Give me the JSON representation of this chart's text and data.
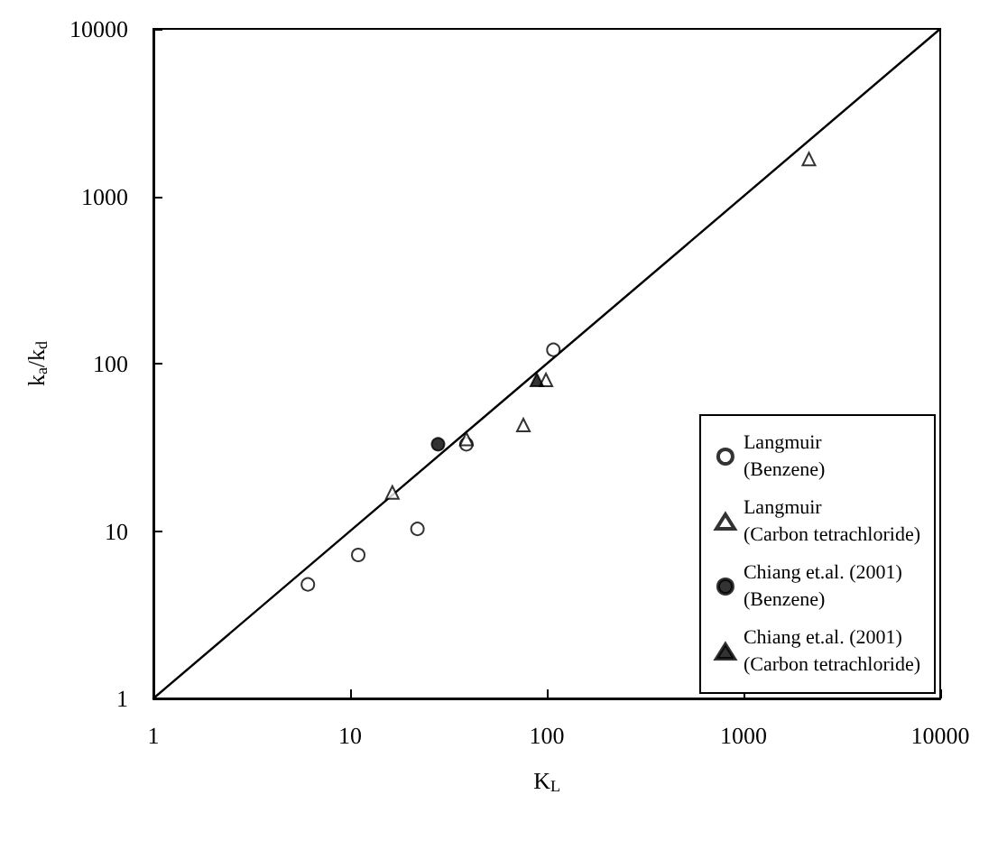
{
  "chart_data": {
    "type": "scatter",
    "xlabel": "K$_{L}$",
    "ylabel": "k$_{a}$/k$_{d}$",
    "log": "xy",
    "xlim": [
      1,
      10000
    ],
    "xticks": [
      1,
      10,
      100,
      1000,
      10000
    ],
    "ylim": [
      1,
      10000
    ],
    "yticks": [
      1,
      10,
      100,
      1000,
      10000
    ],
    "grid": false,
    "legend": "bottom right",
    "series": [
      {
        "name": "Langmuir\n(Benzene)",
        "marker": "circle",
        "color": "#ffffff",
        "x": [
          6.1,
          11,
          22,
          39,
          108
        ],
        "values": [
          4.8,
          7.2,
          10.3,
          33,
          121
        ]
      },
      {
        "name": "Langmuir\n(Carbon tetrachloride)",
        "marker": "triangle",
        "color": "#ffffff",
        "x": [
          16.4,
          39,
          76,
          99,
          2150
        ],
        "values": [
          17,
          35.5,
          43,
          80,
          1670
        ]
      },
      {
        "name": "Chiang et.al. (2001)\n(Benzene)",
        "marker": "circle",
        "color": "#000000",
        "x": [
          28
        ],
        "values": [
          33
        ]
      },
      {
        "name": "Chiang et.al. (2001)\n(Carbon tetrachloride)",
        "marker": "triangle",
        "color": "#000000",
        "x": [
          89
        ],
        "values": [
          80
        ]
      },
      {
        "type": "line",
        "marker": "none",
        "line_style": "solid",
        "color": "#000000",
        "x": [
          1,
          10000
        ],
        "values": [
          1,
          10000
        ]
      }
    ]
  }
}
